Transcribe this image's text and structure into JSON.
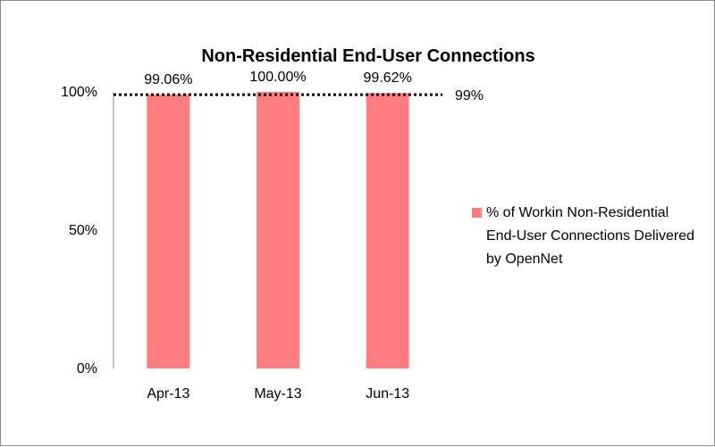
{
  "chart_data": {
    "type": "bar",
    "title": "Non-Residential End-User Connections",
    "categories": [
      "Apr-13",
      "May-13",
      "Jun-13"
    ],
    "series": [
      {
        "name": "% of Workin Non-Residential End-User Connections Delivered by OpenNet",
        "values": [
          99.06,
          100.0,
          99.62
        ],
        "data_labels": [
          "99.06%",
          "100.00%",
          "99.62%"
        ],
        "color": "#ff7c80"
      }
    ],
    "ylim": [
      0,
      100
    ],
    "yticks": [
      {
        "value": 0,
        "label": "0%"
      },
      {
        "value": 50,
        "label": "50%"
      },
      {
        "value": 100,
        "label": "100%"
      }
    ],
    "reference_line": {
      "value": 99,
      "label": "99%",
      "style": "dotted",
      "color": "#000000"
    },
    "grid": false,
    "legend_position": "right"
  }
}
